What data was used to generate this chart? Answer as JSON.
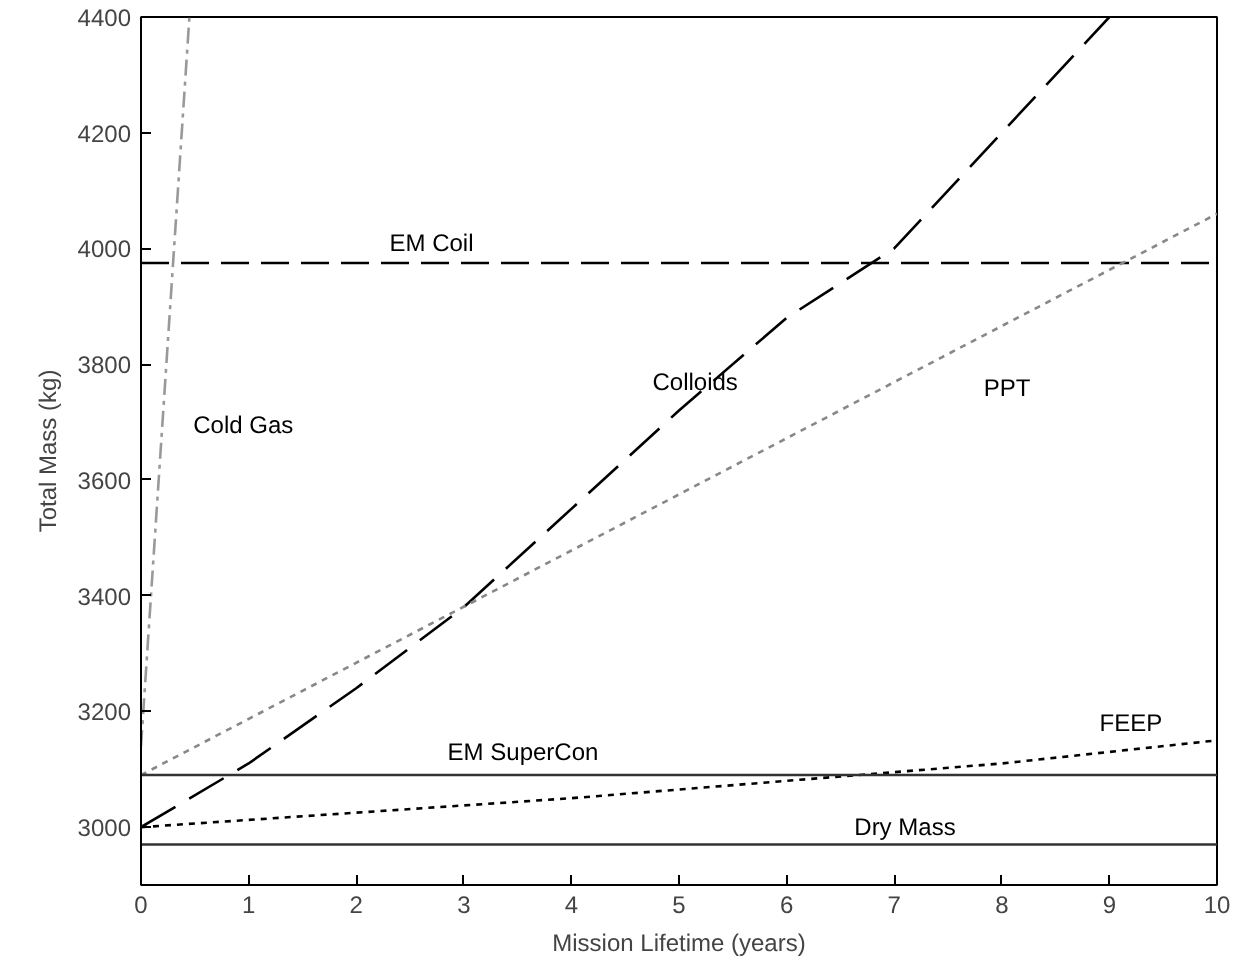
{
  "chart_data": {
    "type": "line",
    "xlabel": "Mission Lifetime (years)",
    "ylabel": "Total Mass (kg)",
    "xlim": [
      0,
      10
    ],
    "ylim": [
      2900,
      4400
    ],
    "xticks": [
      0,
      1,
      2,
      3,
      4,
      5,
      6,
      7,
      8,
      9,
      10
    ],
    "yticks": [
      3000,
      3200,
      3400,
      3600,
      3800,
      4000,
      4200,
      4400
    ],
    "grid": false,
    "marker": "none",
    "series": [
      {
        "name": "Cold Gas",
        "color": "#999999",
        "line_style": "dashdot",
        "x": [
          0,
          0.45
        ],
        "values": [
          3140,
          4400
        ]
      },
      {
        "name": "EM Coil",
        "color": "#000000",
        "line_style": "dashed",
        "x": [
          0,
          10
        ],
        "values": [
          3975,
          3975
        ]
      },
      {
        "name": "Colloids",
        "color": "#000000",
        "line_style": "longdash",
        "x": [
          0,
          1,
          2,
          3,
          4,
          5,
          6,
          7,
          8,
          9
        ],
        "values": [
          3000,
          3110,
          3240,
          3380,
          3550,
          3720,
          3880,
          4000,
          4200,
          4400
        ]
      },
      {
        "name": "PPT",
        "color": "#888888",
        "line_style": "dotted",
        "x": [
          0,
          10
        ],
        "values": [
          3090,
          4060
        ]
      },
      {
        "name": "FEEP",
        "color": "#000000",
        "line_style": "dotted",
        "x": [
          0,
          2,
          4,
          6,
          8,
          10
        ],
        "values": [
          3000,
          3025,
          3050,
          3080,
          3110,
          3150
        ]
      },
      {
        "name": "EM SuperCon",
        "color": "#333333",
        "line_style": "solid",
        "x": [
          0,
          10
        ],
        "values": [
          3090,
          3090
        ]
      },
      {
        "name": "Dry Mass",
        "color": "#333333",
        "line_style": "solid",
        "x": [
          0,
          10
        ],
        "values": [
          2970,
          2970
        ]
      }
    ]
  }
}
